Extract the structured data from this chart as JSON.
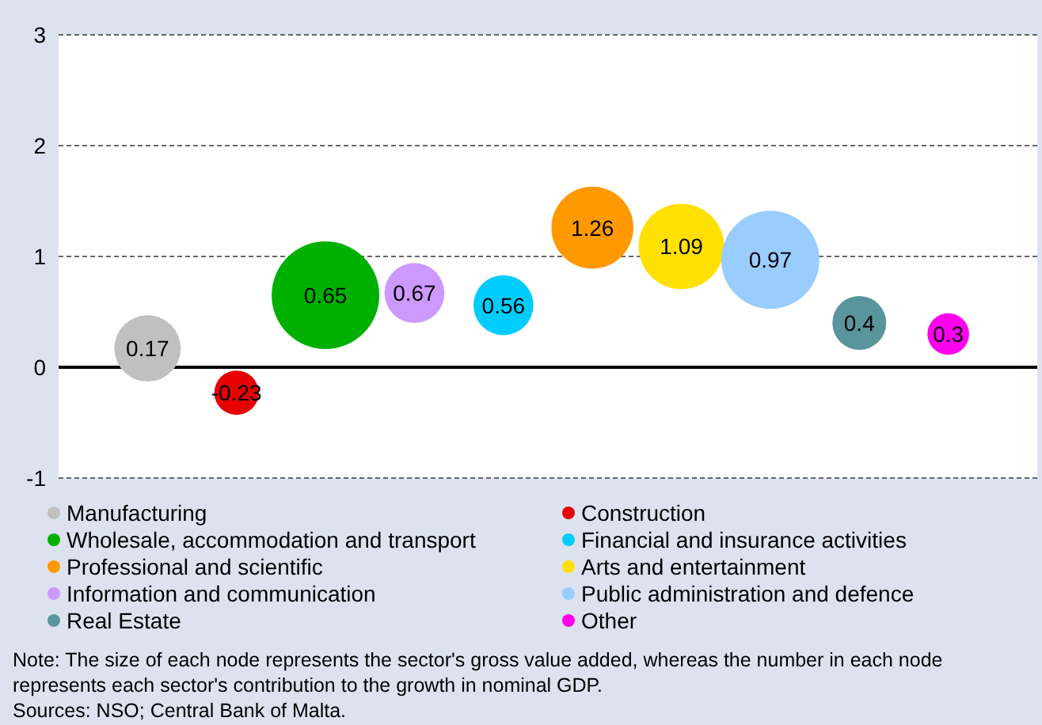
{
  "chart_data": {
    "type": "bubble",
    "categories": [
      null,
      null,
      null,
      null,
      null,
      null,
      null,
      null,
      null,
      null
    ],
    "series": [
      {
        "name": "Manufacturing",
        "color": "#c0c0c0",
        "values": [
          0.17,
          null,
          null,
          null,
          null,
          null,
          null,
          null,
          null,
          null
        ],
        "sizes": [
          0.38,
          null,
          null,
          null,
          null,
          null,
          null,
          null,
          null,
          null
        ]
      },
      {
        "name": "Construction",
        "color": "#e60000",
        "values": [
          null,
          -0.23,
          null,
          null,
          null,
          null,
          null,
          null,
          null,
          null
        ],
        "sizes": [
          null,
          0.17,
          null,
          null,
          null,
          null,
          null,
          null,
          null,
          null
        ]
      },
      {
        "name": "Wholesale, accommodation and transport",
        "color": "#00b000",
        "values": [
          null,
          null,
          0.65,
          null,
          null,
          null,
          null,
          null,
          null,
          null
        ],
        "sizes": [
          null,
          null,
          1,
          null,
          null,
          null,
          null,
          null,
          null,
          null
        ]
      },
      {
        "name": "Financial and insurance activities",
        "color": "#00ccff",
        "values": [
          null,
          null,
          null,
          null,
          0.56,
          null,
          null,
          null,
          null,
          null
        ],
        "sizes": [
          null,
          null,
          null,
          null,
          0.31,
          null,
          null,
          null,
          null,
          null
        ]
      },
      {
        "name": "Professional and scientific",
        "color": "#ff9900",
        "values": [
          null,
          null,
          null,
          null,
          null,
          1.26,
          null,
          null,
          null,
          null
        ],
        "sizes": [
          null,
          null,
          null,
          null,
          null,
          0.58,
          null,
          null,
          null,
          null
        ]
      },
      {
        "name": "Arts and entertainment",
        "color": "#ffe000",
        "values": [
          null,
          null,
          null,
          null,
          null,
          null,
          1.09,
          null,
          null,
          null
        ],
        "sizes": [
          null,
          null,
          null,
          null,
          null,
          null,
          0.63,
          null,
          null,
          null
        ]
      },
      {
        "name": "Information and communication",
        "color": "#cc99ff",
        "values": [
          null,
          null,
          null,
          0.67,
          null,
          null,
          null,
          null,
          null,
          null
        ],
        "sizes": [
          null,
          null,
          null,
          0.31,
          null,
          null,
          null,
          null,
          null,
          null
        ]
      },
      {
        "name": "Public administration and defence",
        "color": "#99ccff",
        "values": [
          null,
          null,
          null,
          null,
          null,
          null,
          null,
          0.97,
          null,
          null
        ],
        "sizes": [
          null,
          null,
          null,
          null,
          null,
          null,
          null,
          0.83,
          null,
          null
        ]
      },
      {
        "name": "Real Estate",
        "color": "#59959c",
        "values": [
          null,
          null,
          null,
          null,
          null,
          null,
          null,
          null,
          0.4,
          null
        ],
        "sizes": [
          null,
          null,
          null,
          null,
          null,
          null,
          null,
          null,
          0.25,
          null
        ]
      },
      {
        "name": "Other",
        "color": "#ff00ee",
        "values": [
          null,
          null,
          null,
          null,
          null,
          null,
          null,
          null,
          null,
          0.3
        ],
        "sizes": [
          null,
          null,
          null,
          null,
          null,
          null,
          null,
          null,
          null,
          0.15
        ]
      }
    ],
    "ylim": [
      -1,
      3
    ],
    "yticks": [
      -1,
      0,
      1,
      2,
      3
    ],
    "grid": "y",
    "data_labels": true,
    "legend": "bottom",
    "ref_lines": [
      {
        "axis": "y",
        "value": 0,
        "color": "#000000"
      }
    ],
    "annotations": [
      "Note: The size of each node represents the sector's gross value added, whereas the number in each node represents each sector's contribution to the growth in nominal GDP.",
      "Sources: NSO; Central Bank of Malta."
    ]
  }
}
